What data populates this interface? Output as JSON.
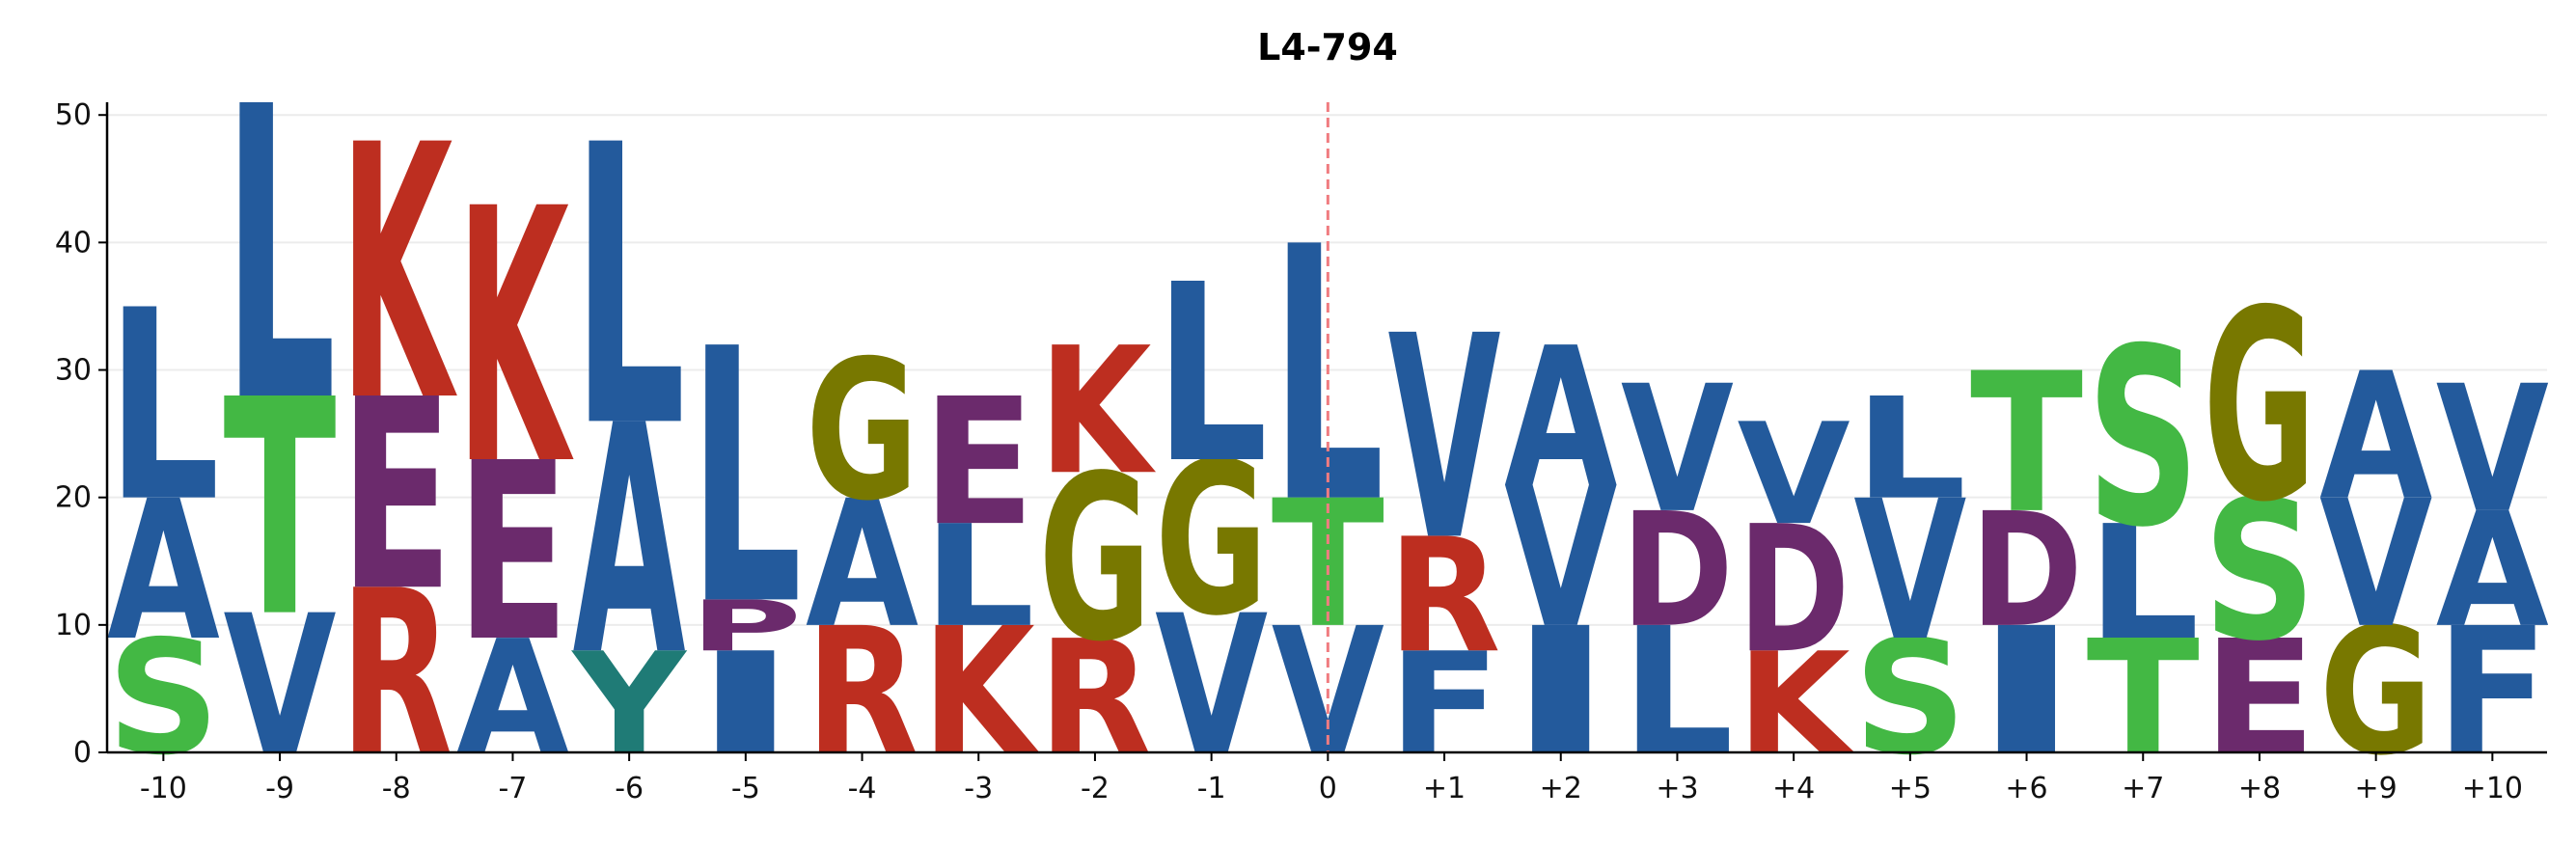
{
  "chart_data": {
    "type": "logo",
    "title": "L4-794",
    "categories": [
      "-10",
      "-9",
      "-8",
      "-7",
      "-6",
      "-5",
      "-4",
      "-3",
      "-2",
      "-1",
      "0",
      "+1",
      "+2",
      "+3",
      "+4",
      "+5",
      "+6",
      "+7",
      "+8",
      "+9",
      "+10"
    ],
    "stacks": [
      [
        {
          "letter": "S",
          "value": 9
        },
        {
          "letter": "A",
          "value": 11
        },
        {
          "letter": "L",
          "value": 15
        }
      ],
      [
        {
          "letter": "V",
          "value": 11
        },
        {
          "letter": "T",
          "value": 17
        },
        {
          "letter": "L",
          "value": 23
        }
      ],
      [
        {
          "letter": "R",
          "value": 13
        },
        {
          "letter": "E",
          "value": 15
        },
        {
          "letter": "K",
          "value": 20
        }
      ],
      [
        {
          "letter": "A",
          "value": 9
        },
        {
          "letter": "E",
          "value": 14
        },
        {
          "letter": "K",
          "value": 20
        }
      ],
      [
        {
          "letter": "Y",
          "value": 8
        },
        {
          "letter": "A",
          "value": 18
        },
        {
          "letter": "L",
          "value": 22
        }
      ],
      [
        {
          "letter": "I",
          "value": 8
        },
        {
          "letter": "P",
          "value": 4
        },
        {
          "letter": "L",
          "value": 20
        }
      ],
      [
        {
          "letter": "R",
          "value": 10
        },
        {
          "letter": "A",
          "value": 10
        },
        {
          "letter": "G",
          "value": 11
        }
      ],
      [
        {
          "letter": "K",
          "value": 10
        },
        {
          "letter": "L",
          "value": 8
        },
        {
          "letter": "E",
          "value": 10
        }
      ],
      [
        {
          "letter": "R",
          "value": 9
        },
        {
          "letter": "G",
          "value": 13
        },
        {
          "letter": "K",
          "value": 10
        }
      ],
      [
        {
          "letter": "V",
          "value": 11
        },
        {
          "letter": "G",
          "value": 12
        },
        {
          "letter": "L",
          "value": 14
        }
      ],
      [
        {
          "letter": "V",
          "value": 10
        },
        {
          "letter": "T",
          "value": 10
        },
        {
          "letter": "L",
          "value": 20
        }
      ],
      [
        {
          "letter": "F",
          "value": 8
        },
        {
          "letter": "R",
          "value": 9
        },
        {
          "letter": "V",
          "value": 16
        }
      ],
      [
        {
          "letter": "I",
          "value": 10
        },
        {
          "letter": "V",
          "value": 11
        },
        {
          "letter": "A",
          "value": 11
        }
      ],
      [
        {
          "letter": "L",
          "value": 10
        },
        {
          "letter": "D",
          "value": 9
        },
        {
          "letter": "V",
          "value": 10
        }
      ],
      [
        {
          "letter": "K",
          "value": 8
        },
        {
          "letter": "D",
          "value": 10
        },
        {
          "letter": "V",
          "value": 8
        }
      ],
      [
        {
          "letter": "S",
          "value": 9
        },
        {
          "letter": "V",
          "value": 11
        },
        {
          "letter": "L",
          "value": 8
        }
      ],
      [
        {
          "letter": "I",
          "value": 10
        },
        {
          "letter": "D",
          "value": 9
        },
        {
          "letter": "T",
          "value": 11
        }
      ],
      [
        {
          "letter": "T",
          "value": 9
        },
        {
          "letter": "L",
          "value": 9
        },
        {
          "letter": "S",
          "value": 14
        }
      ],
      [
        {
          "letter": "E",
          "value": 9
        },
        {
          "letter": "S",
          "value": 11
        },
        {
          "letter": "G",
          "value": 15
        }
      ],
      [
        {
          "letter": "G",
          "value": 10
        },
        {
          "letter": "V",
          "value": 10
        },
        {
          "letter": "A",
          "value": 10
        }
      ],
      [
        {
          "letter": "F",
          "value": 10
        },
        {
          "letter": "A",
          "value": 9
        },
        {
          "letter": "V",
          "value": 10
        }
      ]
    ],
    "letter_colors": {
      "A": "#235a9c",
      "V": "#235a9c",
      "L": "#235a9c",
      "I": "#235a9c",
      "F": "#235a9c",
      "M": "#235a9c",
      "W": "#235a9c",
      "K": "#bd2e20",
      "R": "#bd2e20",
      "D": "#6b2a6c",
      "E": "#6b2a6c",
      "P": "#6b2a6c",
      "G": "#787800",
      "S": "#43b844",
      "T": "#43b844",
      "Y": "#1f7b76"
    },
    "ylim": [
      0,
      51
    ],
    "yticks": [
      0,
      10,
      20,
      30,
      40,
      50
    ],
    "grid": true,
    "vline": {
      "category": "0",
      "color": "#f07c80"
    }
  }
}
